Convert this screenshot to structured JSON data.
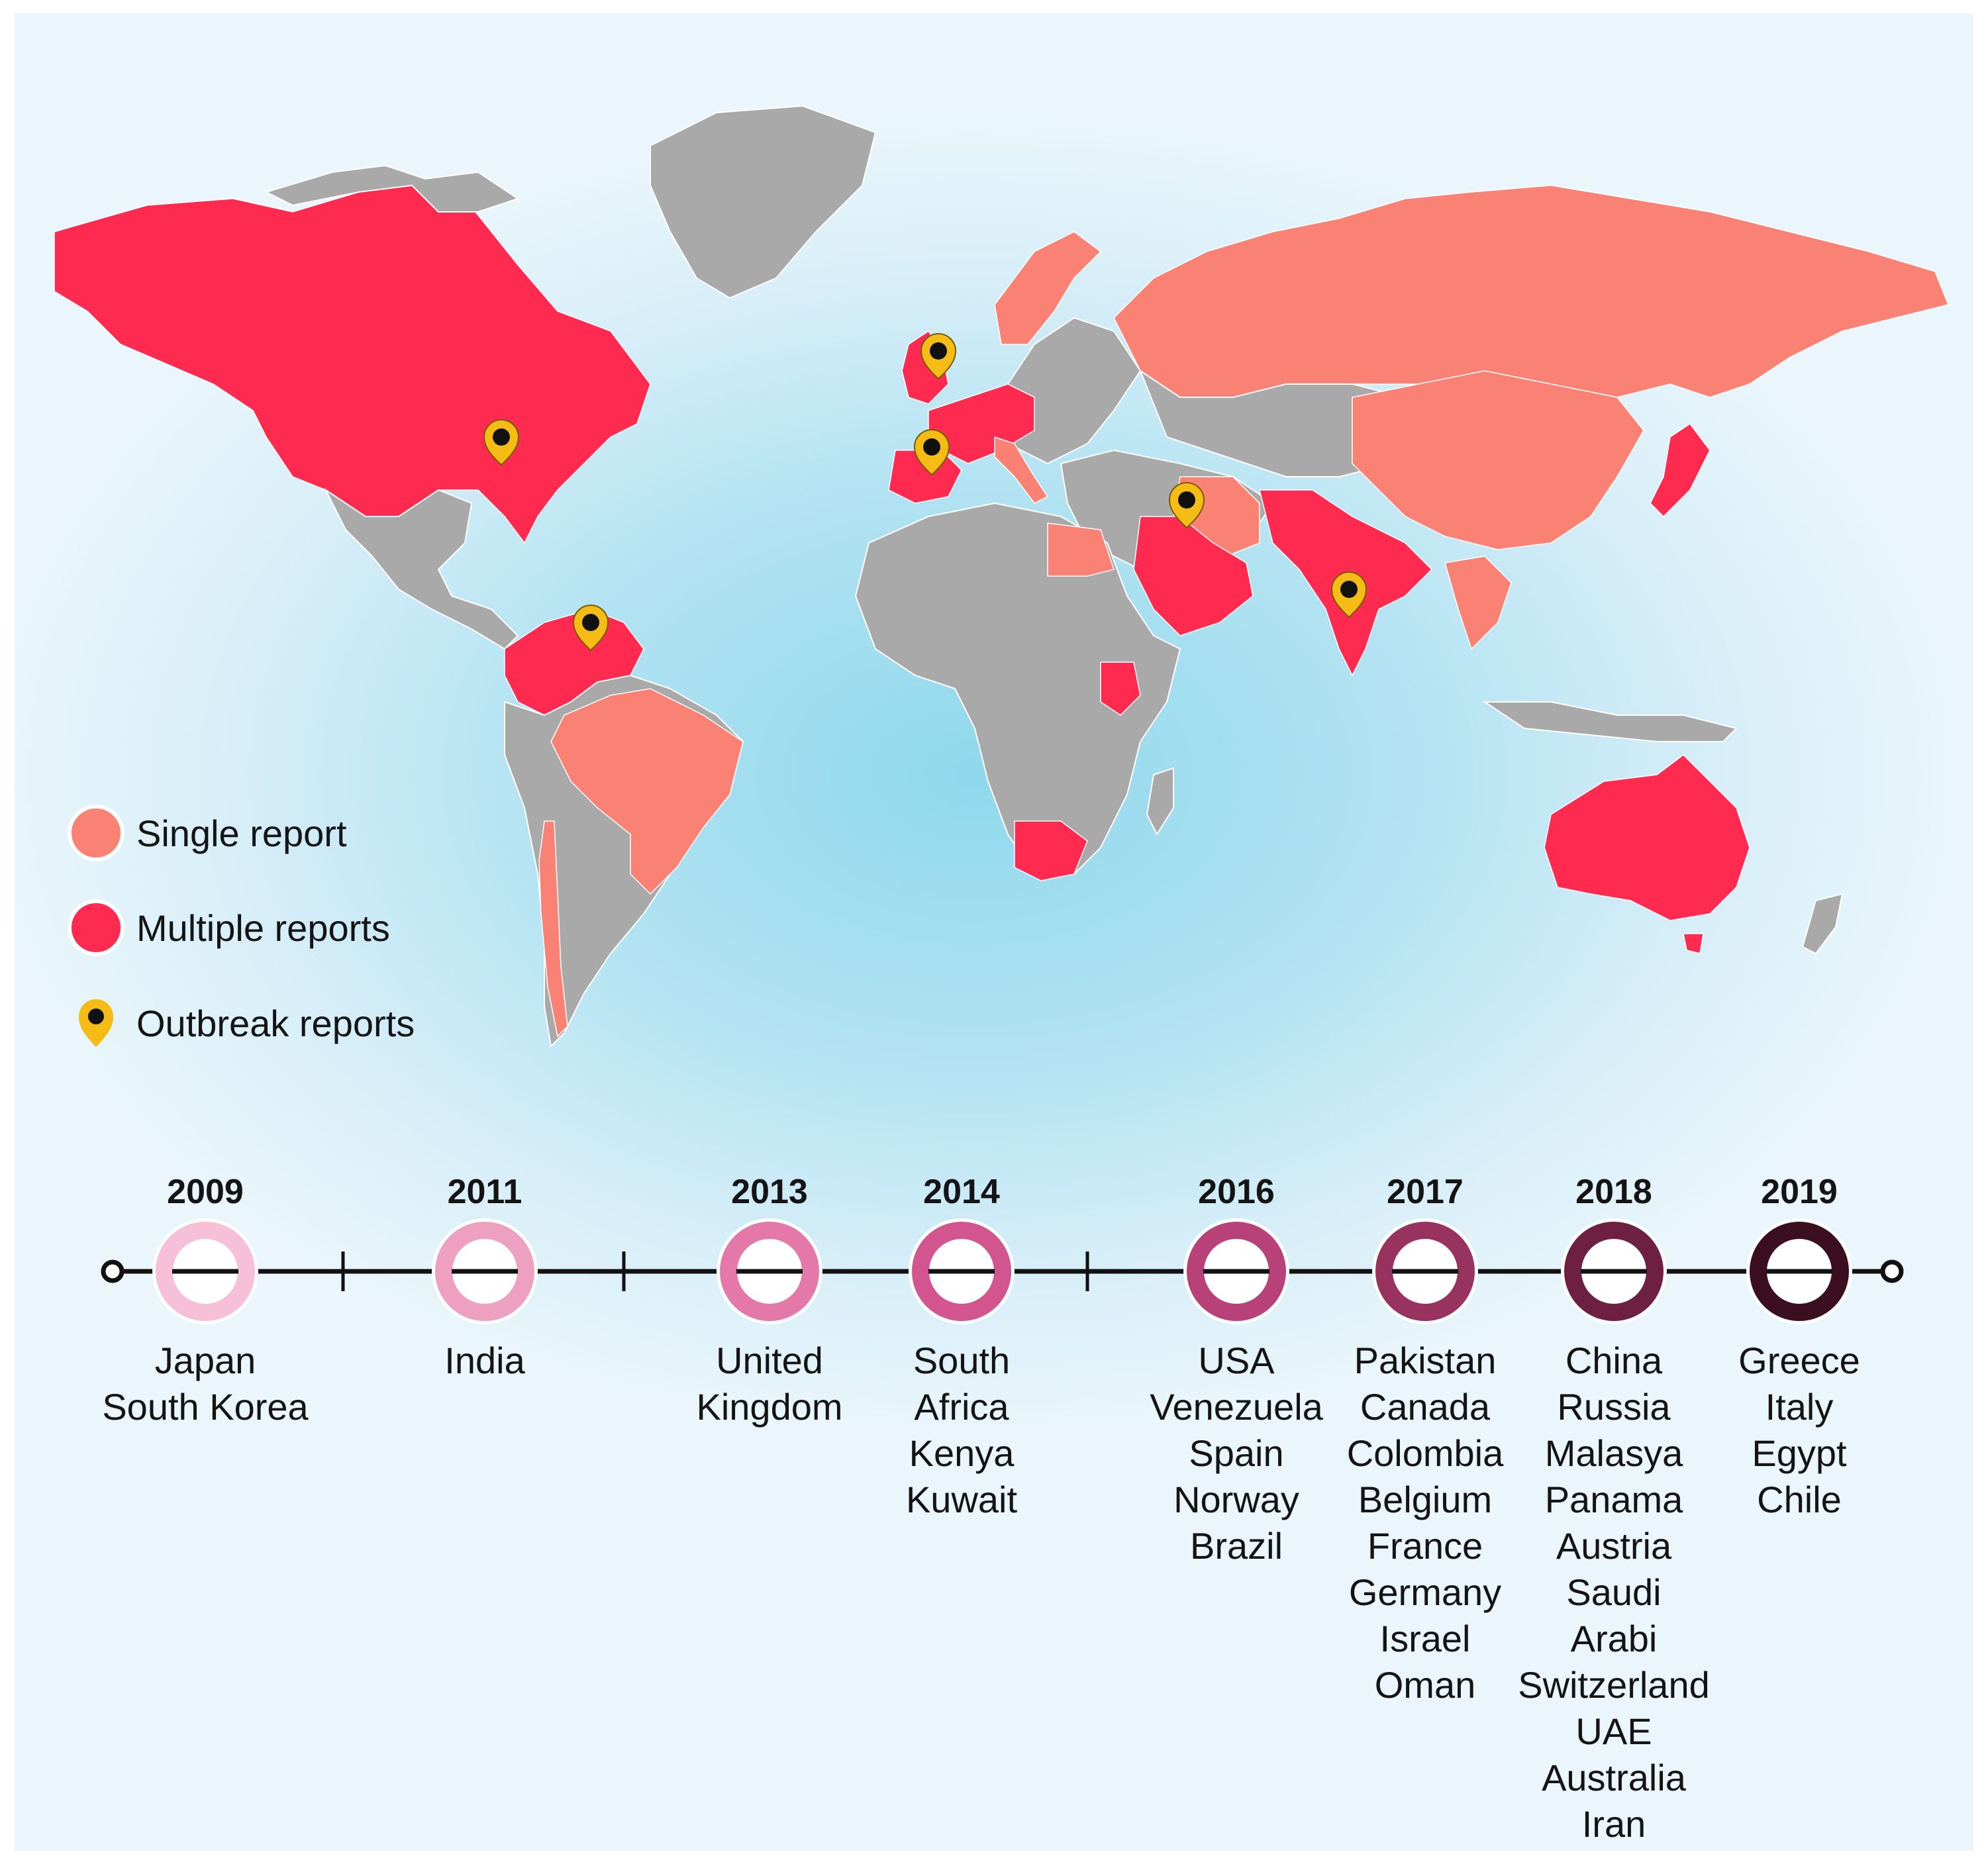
{
  "legend": {
    "single": {
      "label": "Single report",
      "color": "#fa8275"
    },
    "multiple": {
      "label": "Multiple reports",
      "color": "#ff2a4f"
    },
    "outbreak": {
      "label": "Outbreak reports",
      "color": "#f6bc16",
      "icon": "map-pin-icon"
    }
  },
  "colors": {
    "unreported": "#a9a9a9",
    "background": "#a8dff0",
    "timeline_line": "#111111"
  },
  "timeline": [
    {
      "year": "2009",
      "color": "#f6c0d8",
      "countries": [
        "Japan",
        "South Korea"
      ]
    },
    {
      "year": "2011",
      "color": "#eda0c0",
      "countries": [
        "India"
      ]
    },
    {
      "year": "2013",
      "color": "#e478a8",
      "countries": [
        "United",
        "Kingdom"
      ]
    },
    {
      "year": "2014",
      "color": "#d2558f",
      "countries": [
        "South",
        "Africa",
        "Kenya",
        "Kuwait"
      ]
    },
    {
      "year": "2016",
      "color": "#b8417a",
      "countries": [
        "USA",
        "Venezuela",
        "Spain",
        "Norway",
        "Brazil"
      ]
    },
    {
      "year": "2017",
      "color": "#98335f",
      "countries": [
        "Pakistan",
        "Canada",
        "Colombia",
        "Belgium",
        "France",
        "Germany",
        "Israel",
        "Oman"
      ]
    },
    {
      "year": "2018",
      "color": "#6e2042",
      "countries": [
        "China",
        "Russia",
        "Malasya",
        "Panama",
        "Austria",
        "Saudi",
        "Arabi",
        "Switzerland",
        "UAE",
        "Australia",
        "Iran"
      ]
    },
    {
      "year": "2019",
      "color": "#3b0f20",
      "countries": [
        "Greece",
        "Italy",
        "Egypt",
        "Chile"
      ]
    }
  ]
}
